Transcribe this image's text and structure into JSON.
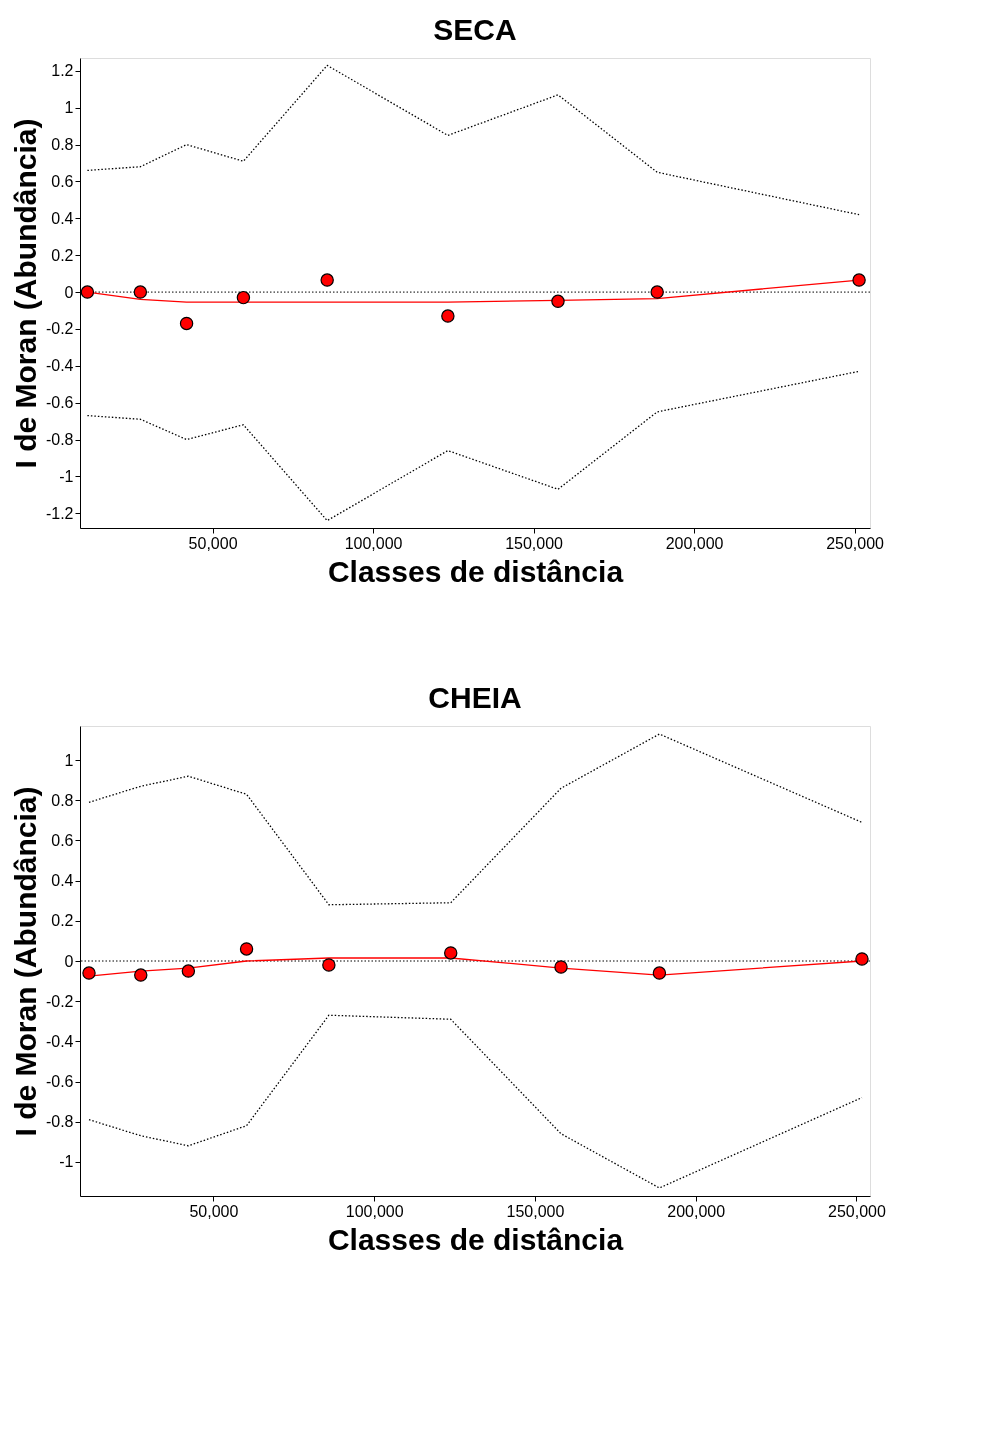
{
  "chart_data": [
    {
      "type": "scatter",
      "title": "SECA",
      "xlabel": "Classes de distância",
      "ylabel": "I de Moran (Abundância)",
      "xlim": [
        8700,
        254800
      ],
      "xticks": [
        {
          "value": 50000,
          "label": "50,000"
        },
        {
          "value": 100000,
          "label": "100,000"
        },
        {
          "value": 150000,
          "label": "150,000"
        },
        {
          "value": 200000,
          "label": "200,000"
        },
        {
          "value": 250000,
          "label": "250,000"
        }
      ],
      "ylim": [
        -1.28,
        1.27
      ],
      "yticks": [
        -1.2,
        -1,
        -0.8,
        -0.6,
        -0.4,
        -0.2,
        0,
        0.2,
        0.4,
        0.6,
        0.8,
        1,
        1.2
      ],
      "grid": false,
      "x": [
        11000,
        27500,
        41900,
        59600,
        85700,
        123300,
        157600,
        188500,
        251400
      ],
      "series": [
        {
          "type": "line",
          "color": "#000000",
          "line_style": "dotted",
          "values": [
            0.66,
            0.68,
            0.8,
            0.71,
            1.23,
            0.85,
            1.07,
            0.65,
            0.42
          ]
        },
        {
          "type": "line",
          "color": "#000000",
          "line_style": "dotted",
          "values": [
            -0.67,
            -0.69,
            -0.8,
            -0.72,
            -1.24,
            -0.86,
            -1.07,
            -0.65,
            -0.43
          ]
        },
        {
          "type": "line",
          "color": "#ff0000",
          "line_style": "solid",
          "values": [
            0,
            -0.04,
            -0.055,
            -0.055,
            -0.055,
            -0.055,
            -0.045,
            -0.035,
            0.065
          ]
        },
        {
          "color": "#ff0000",
          "marker": "circle",
          "values": [
            0,
            0,
            -0.17,
            -0.03,
            0.065,
            -0.13,
            -0.05,
            0,
            0.065
          ]
        }
      ],
      "ref_lines": [
        {
          "axis": "y",
          "value": 0,
          "color": "#000000",
          "line_style": "dotted"
        }
      ]
    },
    {
      "type": "scatter",
      "title": "CHEIA",
      "xlabel": "Classes de distância",
      "ylabel": "I de Moran (Abundância)",
      "xlim": [
        8500,
        254200
      ],
      "xticks": [
        {
          "value": 50000,
          "label": "50,000"
        },
        {
          "value": 100000,
          "label": "100,000"
        },
        {
          "value": 150000,
          "label": "150,000"
        },
        {
          "value": 200000,
          "label": "200,000"
        },
        {
          "value": 250000,
          "label": "250,000"
        }
      ],
      "ylim": [
        -1.17,
        1.17
      ],
      "yticks": [
        -1,
        -0.8,
        -0.6,
        -0.4,
        -0.2,
        0,
        0.2,
        0.4,
        0.6,
        0.8,
        1
      ],
      "grid": false,
      "x": [
        11300,
        27400,
        42200,
        60300,
        85900,
        123800,
        158100,
        188700,
        251700
      ],
      "series": [
        {
          "type": "line",
          "color": "#000000",
          "line_style": "dotted",
          "values": [
            0.79,
            0.87,
            0.92,
            0.83,
            0.28,
            0.29,
            0.86,
            1.13,
            0.69
          ]
        },
        {
          "type": "line",
          "color": "#000000",
          "line_style": "dotted",
          "values": [
            -0.79,
            -0.87,
            -0.92,
            -0.82,
            -0.27,
            -0.29,
            -0.86,
            -1.13,
            -0.68
          ]
        },
        {
          "type": "line",
          "color": "#ff0000",
          "line_style": "solid",
          "values": [
            -0.075,
            -0.05,
            -0.035,
            0,
            0.015,
            0.015,
            -0.035,
            -0.07,
            0
          ]
        },
        {
          "color": "#ff0000",
          "marker": "circle",
          "values": [
            -0.06,
            -0.07,
            -0.05,
            0.06,
            -0.02,
            0.04,
            -0.03,
            -0.06,
            0.01
          ]
        }
      ],
      "ref_lines": [
        {
          "axis": "y",
          "value": 0,
          "color": "#000000",
          "line_style": "dotted"
        }
      ]
    }
  ]
}
